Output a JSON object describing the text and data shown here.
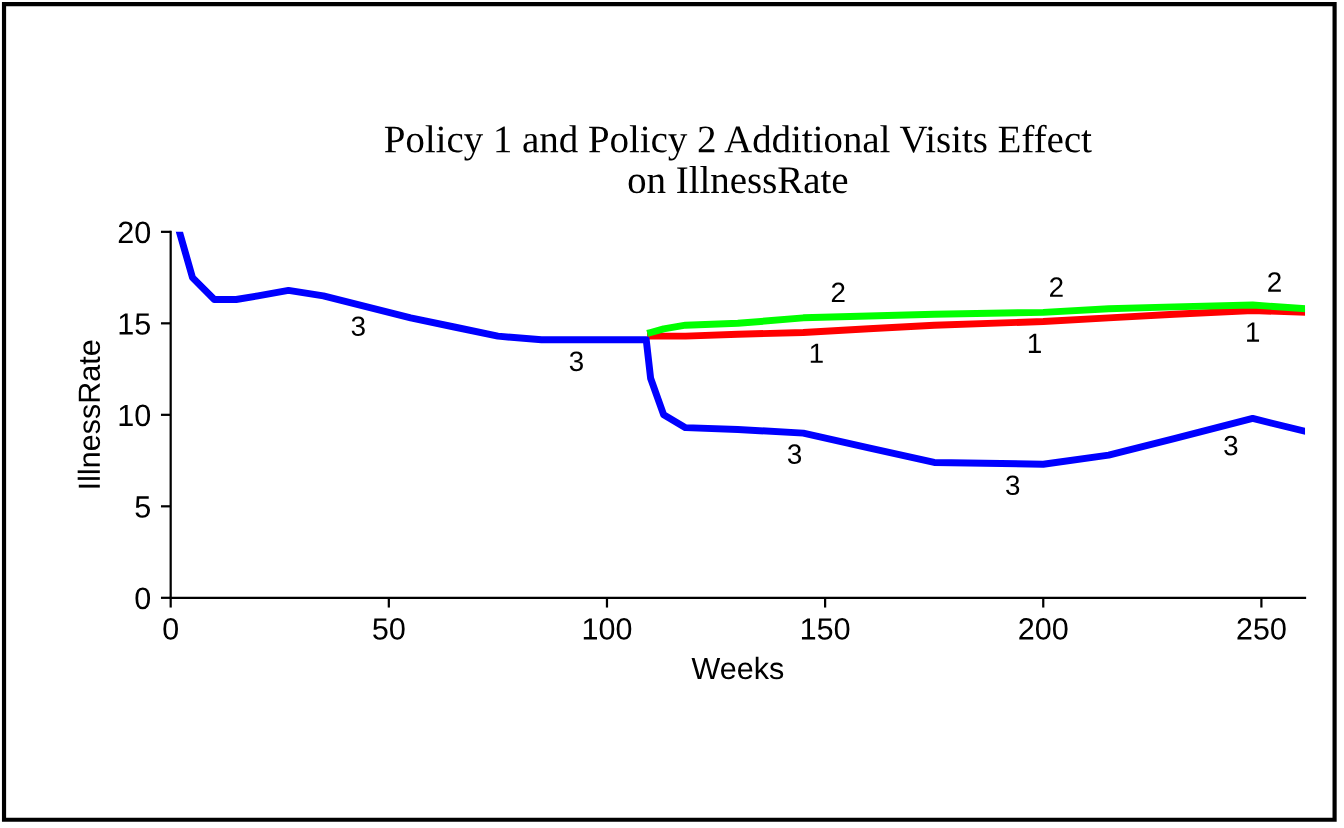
{
  "chart_data": {
    "type": "line",
    "title": "Policy 1 and Policy 2 Additional Visits Effect\non IllnessRate",
    "xlabel": "Weeks",
    "ylabel": "IllnessRate",
    "xlim": [
      0,
      260
    ],
    "ylim": [
      0,
      20
    ],
    "xticks": [
      0,
      50,
      100,
      150,
      200,
      250
    ],
    "yticks": [
      0,
      5,
      10,
      15,
      20
    ],
    "grid": false,
    "legend": false,
    "x": [
      2,
      5,
      10,
      15,
      20,
      27,
      35,
      45,
      55,
      65,
      75,
      85,
      100,
      109,
      110,
      113,
      118,
      130,
      145,
      160,
      175,
      200,
      215,
      230,
      248,
      260
    ],
    "series": [
      {
        "name": "1",
        "color": "#ff0000",
        "values": [
          null,
          null,
          null,
          null,
          null,
          null,
          null,
          null,
          null,
          null,
          null,
          null,
          null,
          null,
          14.3,
          14.3,
          14.3,
          14.4,
          14.5,
          14.7,
          14.9,
          15.1,
          15.3,
          15.5,
          15.7,
          15.6
        ]
      },
      {
        "name": "2",
        "color": "#00ff00",
        "values": [
          null,
          null,
          null,
          null,
          null,
          null,
          null,
          null,
          null,
          null,
          null,
          null,
          null,
          null,
          14.5,
          14.7,
          14.9,
          15.0,
          15.3,
          15.4,
          15.5,
          15.6,
          15.8,
          15.9,
          16.0,
          15.8
        ]
      },
      {
        "name": "3",
        "color": "#0000ff",
        "values": [
          20,
          17.5,
          16.3,
          16.3,
          16.5,
          16.8,
          16.5,
          15.9,
          15.3,
          14.8,
          14.3,
          14.1,
          14.1,
          14.1,
          12,
          10,
          9.3,
          9.2,
          9.0,
          8.2,
          7.4,
          7.3,
          7.8,
          8.7,
          9.8,
          9.1
        ]
      }
    ]
  }
}
